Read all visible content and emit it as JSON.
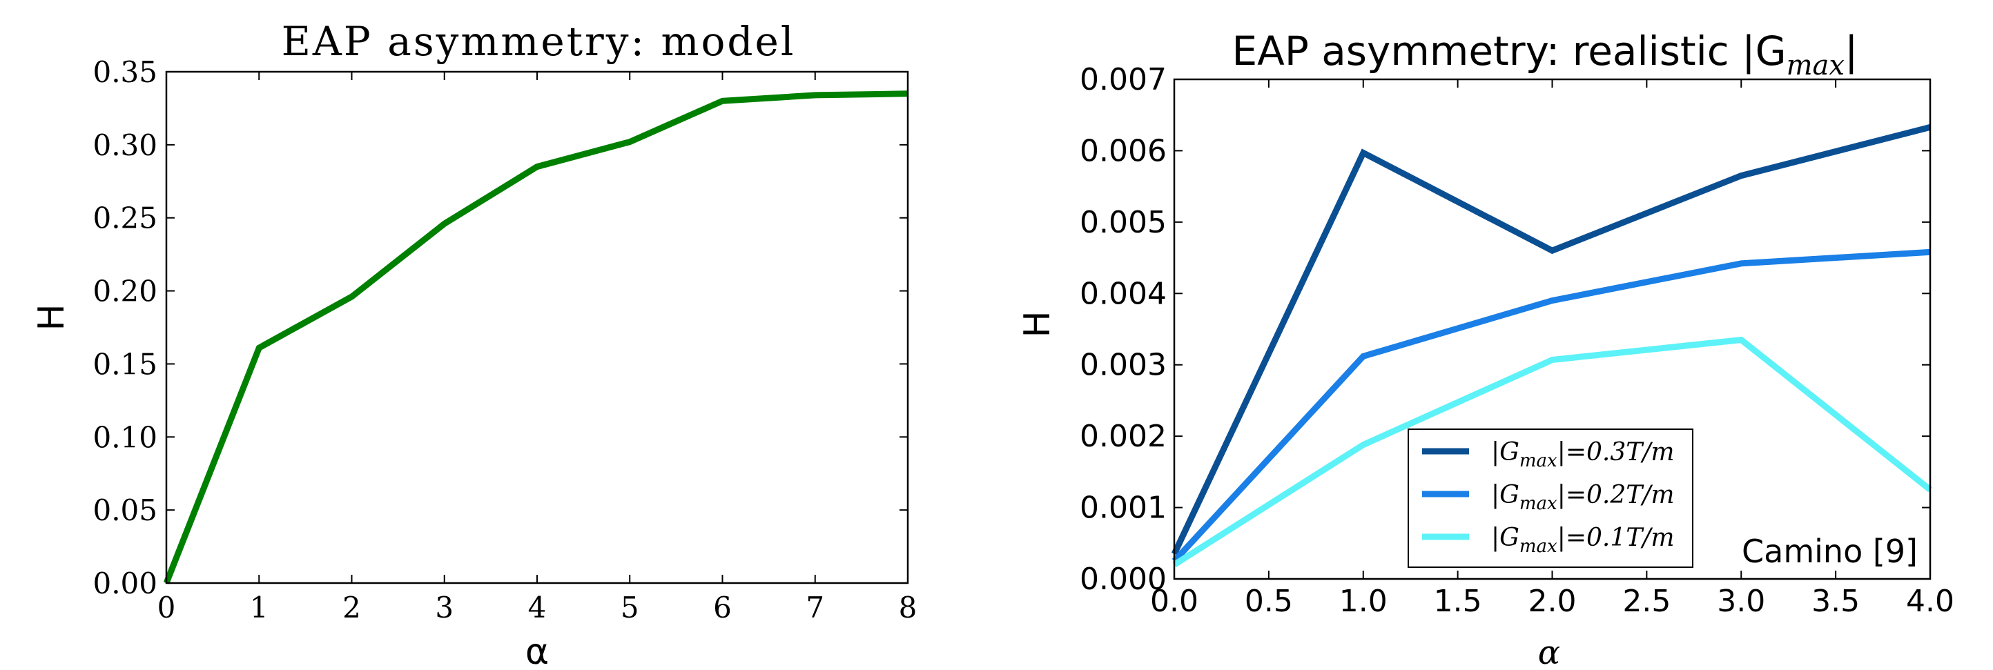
{
  "chart_data": [
    {
      "type": "line",
      "title": "EAP asymmetry: model",
      "xlabel": "α",
      "ylabel": "H",
      "xlim": [
        0,
        8
      ],
      "ylim": [
        0,
        0.35
      ],
      "x_ticks": [
        "0",
        "1",
        "2",
        "3",
        "4",
        "5",
        "6",
        "7",
        "8"
      ],
      "y_ticks": [
        "0.00",
        "0.05",
        "0.10",
        "0.15",
        "0.20",
        "0.25",
        "0.30",
        "0.35"
      ],
      "grid": false,
      "series": [
        {
          "color": "#008000",
          "x": [
            0,
            1,
            2,
            3,
            4,
            5,
            6,
            7,
            8
          ],
          "values": [
            0.0,
            0.161,
            0.196,
            0.246,
            0.285,
            0.302,
            0.33,
            0.334,
            0.335
          ]
        }
      ]
    },
    {
      "type": "line",
      "title": "EAP asymmetry: realistic |G",
      "title_subscript": "max",
      "title_suffix": "|",
      "xlabel": "α",
      "ylabel": "H",
      "xlim": [
        0,
        4
      ],
      "ylim": [
        0,
        0.007
      ],
      "x_ticks": [
        "0.0",
        "0.5",
        "1.0",
        "1.5",
        "2.0",
        "2.5",
        "3.0",
        "3.5",
        "4.0"
      ],
      "y_ticks": [
        "0.000",
        "0.001",
        "0.002",
        "0.003",
        "0.004",
        "0.005",
        "0.006",
        "0.007"
      ],
      "grid": false,
      "legend_position": "bottom-center",
      "annotation": "Camino [9]",
      "series": [
        {
          "name": "|G",
          "name_sub": "max",
          "name_rest": "|=0.3T/m",
          "color": "#0b4f93",
          "x": [
            0,
            1,
            2,
            3,
            4
          ],
          "values": [
            0.00035,
            0.00597,
            0.0046,
            0.00565,
            0.00633
          ]
        },
        {
          "name": "|G",
          "name_sub": "max",
          "name_rest": "|=0.2T/m",
          "color": "#1a7fe6",
          "x": [
            0,
            1,
            2,
            3,
            4
          ],
          "values": [
            0.00025,
            0.00312,
            0.0039,
            0.00442,
            0.00458
          ]
        },
        {
          "name": "|G",
          "name_sub": "max",
          "name_rest": "|=0.1T/m",
          "color": "#5cf2f8",
          "x": [
            0,
            1,
            2,
            3,
            4
          ],
          "values": [
            0.0002,
            0.00188,
            0.00307,
            0.00335,
            0.00125
          ]
        }
      ]
    }
  ]
}
